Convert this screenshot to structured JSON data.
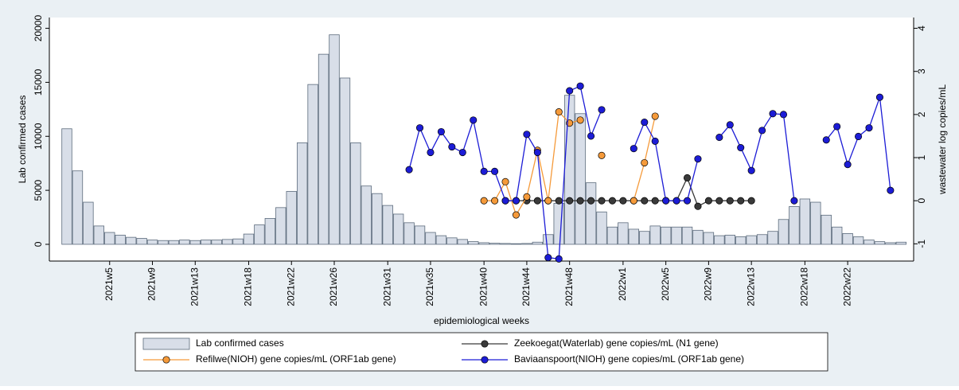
{
  "chart_data": {
    "type": "combo",
    "xlabel": "epidemiological weeks",
    "ylabel": "Lab  confirmed cases",
    "y2label": "wastewater log copies/mL",
    "ylim": [
      -1550,
      21000
    ],
    "yticks": [
      0,
      5000,
      10000,
      15000,
      20000
    ],
    "y2lim": [
      -1.4,
      4.25
    ],
    "y2ticks": [
      -1,
      0,
      1,
      2,
      3,
      4
    ],
    "categories": [
      null,
      null,
      null,
      null,
      "2021w5",
      null,
      null,
      null,
      "2021w9",
      null,
      null,
      null,
      "2021w13",
      null,
      null,
      null,
      null,
      "2021w18",
      null,
      null,
      null,
      "2021w22",
      null,
      null,
      null,
      "2021w26",
      null,
      null,
      null,
      null,
      "2021w31",
      null,
      null,
      null,
      "2021w35",
      null,
      null,
      null,
      null,
      "2021w40",
      null,
      null,
      null,
      "2021w44",
      null,
      null,
      null,
      "2021w48",
      null,
      null,
      null,
      null,
      "2022w1",
      null,
      null,
      null,
      "2022w5",
      null,
      null,
      null,
      "2022w9",
      null,
      null,
      null,
      "2022w13",
      null,
      null,
      null,
      null,
      "2022w18",
      null,
      null,
      null,
      "2022w22",
      null,
      null,
      null,
      null,
      null
    ],
    "series": [
      {
        "name": "Lab  confirmed cases",
        "type": "bar",
        "color": "#d8dee8",
        "values": [
          10700,
          6800,
          3900,
          1700,
          1100,
          850,
          650,
          550,
          400,
          350,
          350,
          400,
          350,
          400,
          400,
          450,
          500,
          950,
          1800,
          2400,
          3400,
          4900,
          9400,
          14800,
          17600,
          19400,
          15400,
          9400,
          5400,
          4700,
          3600,
          2800,
          2000,
          1700,
          1100,
          800,
          600,
          450,
          250,
          150,
          100,
          80,
          60,
          80,
          200,
          900,
          3800,
          13800,
          12100,
          5700,
          3000,
          1600,
          2000,
          1400,
          1200,
          1700,
          1600,
          1600,
          1600,
          1300,
          1100,
          800,
          850,
          700,
          800,
          900,
          1200,
          2300,
          3500,
          4200,
          3900,
          2700,
          1600,
          1000,
          700,
          400,
          250,
          150,
          200
        ]
      },
      {
        "name": "Zeekoegat(Waterlab) gene copies/mL (N1 gene)",
        "type": "line",
        "axis": "y2",
        "color": "#3a3a3a",
        "values": [
          null,
          null,
          null,
          null,
          null,
          null,
          null,
          null,
          null,
          null,
          null,
          null,
          null,
          null,
          null,
          null,
          null,
          null,
          null,
          null,
          null,
          null,
          null,
          null,
          null,
          null,
          null,
          null,
          null,
          null,
          null,
          null,
          null,
          null,
          null,
          null,
          null,
          null,
          null,
          null,
          null,
          0,
          0,
          0,
          0,
          0,
          0,
          0,
          0,
          0,
          0,
          0,
          0,
          0,
          0,
          0,
          0,
          0,
          0.53,
          -0.13,
          0,
          0,
          0,
          0,
          0,
          null,
          null,
          null,
          null,
          null,
          null,
          null,
          null,
          null,
          null,
          null,
          null,
          null,
          null
        ]
      },
      {
        "name": "Refilwe(NIOH) gene copies/mL (ORF1ab gene)",
        "type": "line",
        "axis": "y2",
        "color": "#f59a3a",
        "values": [
          null,
          null,
          null,
          null,
          null,
          null,
          null,
          null,
          null,
          null,
          null,
          null,
          null,
          null,
          null,
          null,
          null,
          null,
          null,
          null,
          null,
          null,
          null,
          null,
          null,
          null,
          null,
          null,
          null,
          null,
          null,
          null,
          null,
          null,
          null,
          null,
          null,
          null,
          null,
          0,
          0,
          0.44,
          -0.33,
          0.09,
          1.17,
          0,
          2.06,
          1.8,
          1.87,
          null,
          1.05,
          null,
          null,
          0,
          0.88,
          1.96,
          null,
          null,
          null,
          null,
          null,
          null,
          null,
          null,
          null,
          null,
          null,
          null,
          null,
          null,
          null,
          null,
          null,
          null,
          null,
          null,
          null,
          null,
          null
        ]
      },
      {
        "name": "Baviaanspoort(NIOH) gene copies/mL (ORF1ab gene)",
        "type": "line",
        "axis": "y2",
        "color": "#1c1cd6",
        "values": [
          null,
          null,
          null,
          null,
          null,
          null,
          null,
          null,
          null,
          null,
          null,
          null,
          null,
          null,
          null,
          null,
          null,
          null,
          null,
          null,
          null,
          null,
          null,
          null,
          null,
          null,
          null,
          null,
          null,
          null,
          null,
          null,
          0.72,
          1.69,
          1.12,
          1.6,
          1.25,
          1.12,
          1.87,
          0.68,
          0.68,
          0,
          0,
          1.54,
          1.12,
          -1.32,
          -1.35,
          2.55,
          2.66,
          1.5,
          2.11,
          null,
          null,
          1.21,
          1.82,
          1.38,
          0,
          0,
          0,
          0.97,
          null,
          1.47,
          1.76,
          1.23,
          0.7,
          1.63,
          2.02,
          2.0,
          0,
          null,
          null,
          1.41,
          1.72,
          0.84,
          1.49,
          1.69,
          2.4,
          0.24,
          null
        ]
      }
    ]
  }
}
